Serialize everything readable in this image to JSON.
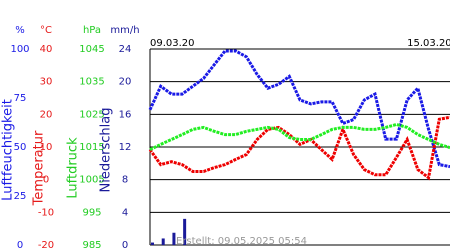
{
  "chart_data": {
    "type": "line",
    "categories": [
      "09.03.20",
      null,
      null,
      null,
      null,
      null,
      null,
      null,
      null,
      null,
      null,
      null,
      null,
      null,
      null,
      null,
      null,
      null,
      null,
      null,
      null,
      null,
      null,
      null,
      "15.03.20",
      null,
      null,
      null,
      null
    ],
    "axes": [
      {
        "unit": "%",
        "title": "Luftfeuchtigkeit",
        "color": "#1a1ae6",
        "ylim": [
          0,
          100
        ],
        "yticks": [
          0,
          25,
          50,
          75,
          100
        ]
      },
      {
        "unit": "°C",
        "title": "Temperatur",
        "color": "#e61a1a",
        "ylim": [
          -20,
          40
        ],
        "yticks": [
          -20,
          -10,
          0,
          10,
          20,
          30,
          40
        ]
      },
      {
        "unit": "hPa",
        "title": "Luftdruck",
        "color": "#22cc22",
        "ylim": [
          985,
          1045
        ],
        "yticks": [
          985,
          995,
          1005,
          1015,
          1025,
          1035,
          1045
        ]
      },
      {
        "unit": "mm/h",
        "title": "Niederschlag",
        "color": "#1a1a99",
        "ylim": [
          0,
          24
        ],
        "yticks": [
          0,
          4,
          8,
          12,
          16,
          20,
          24
        ]
      }
    ],
    "series": [
      {
        "type": "line",
        "axis": 0,
        "color": "#1a1ae6",
        "values": [
          69,
          81,
          77,
          77,
          81,
          85,
          92,
          99,
          99,
          96,
          87,
          80,
          82,
          86,
          74,
          72,
          73,
          73,
          62,
          64,
          74,
          77,
          54,
          54,
          74,
          80,
          59,
          41,
          40
        ]
      },
      {
        "type": "line",
        "axis": 1,
        "color": "#ee0000",
        "values": [
          9.2,
          4.6,
          5.5,
          4.6,
          2.5,
          2.5,
          3.7,
          4.6,
          6.2,
          7.7,
          12.3,
          15.4,
          16,
          13.8,
          10.8,
          12.3,
          9.2,
          6.2,
          15.4,
          7.7,
          3.1,
          1.5,
          1.5,
          6.8,
          12.3,
          3.1,
          0.6,
          18.5,
          19.1
        ]
      },
      {
        "type": "line",
        "axis": 2,
        "color": "#22ee22",
        "values": [
          1014.2,
          1015.8,
          1017.3,
          1018.8,
          1020.4,
          1021,
          1019.8,
          1018.8,
          1018.8,
          1019.8,
          1020.4,
          1021,
          1020.4,
          1017.9,
          1017.3,
          1017.3,
          1018.8,
          1020.4,
          1021,
          1021,
          1020.4,
          1020.4,
          1021,
          1021.9,
          1021,
          1018.8,
          1017.3,
          1015.8,
          1014.8
        ]
      },
      {
        "type": "bar",
        "axis": 3,
        "color": "#1a1a99",
        "values": [
          0.3,
          0.8,
          1.5,
          3.2,
          0,
          0,
          0,
          0,
          0,
          0,
          0,
          0,
          0,
          0,
          0,
          0,
          0,
          0,
          0,
          0,
          0,
          0,
          0,
          0,
          0,
          0,
          0,
          0,
          0
        ]
      }
    ],
    "grid": true,
    "footer": "Erstellt: 09.05.2025 05:54"
  }
}
